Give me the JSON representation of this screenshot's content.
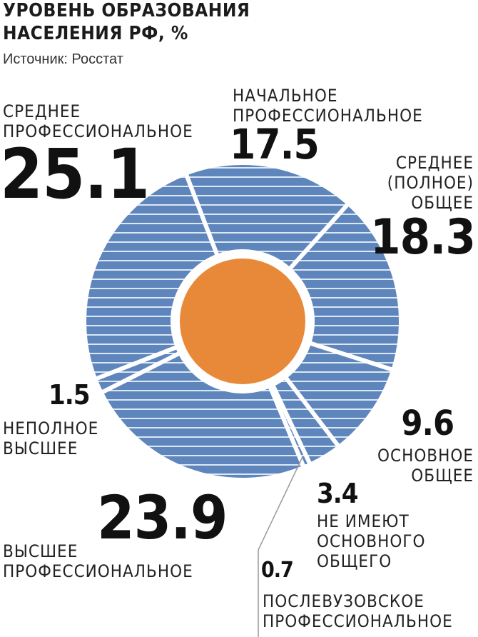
{
  "title": {
    "line1": "УРОВЕНЬ ОБРАЗОВАНИЯ",
    "line2": "НАСЕЛЕНИЯ РФ, %",
    "source": "Источник: Росстат"
  },
  "colors": {
    "ring": "#5f86bc",
    "stripe": "#dbe7f4",
    "center": "#e8893a",
    "separator": "#ffffff"
  },
  "chart_data": {
    "type": "pie",
    "title": "УРОВЕНЬ ОБРАЗОВАНИЯ НАСЕЛЕНИЯ РФ, %",
    "unit": "%",
    "slices": [
      {
        "value": 17.5,
        "value_label": "17.5",
        "label_lines": [
          "НАЧАЛЬНОЕ",
          "ПРОФЕССИОНАЛЬНОЕ"
        ]
      },
      {
        "value": 18.3,
        "value_label": "18.3",
        "label_lines": [
          "СРЕДНЕЕ",
          "(ПОЛНОЕ)",
          "ОБЩЕЕ"
        ]
      },
      {
        "value": 9.6,
        "value_label": "9.6",
        "label_lines": [
          "ОСНОВНОЕ",
          "ОБЩЕЕ"
        ]
      },
      {
        "value": 3.4,
        "value_label": "3.4",
        "label_lines": [
          "НЕ ИМЕЮТ",
          "ОСНОВНОГО",
          "ОБЩЕГО"
        ]
      },
      {
        "value": 0.7,
        "value_label": "0.7",
        "label_lines": [
          "ПОСЛЕВУЗОВСКОЕ",
          "ПРОФЕССИОНАЛЬНОЕ"
        ]
      },
      {
        "value": 23.9,
        "value_label": "23.9",
        "label_lines": [
          "ВЫСШЕЕ",
          "ПРОФЕССИОНАЛЬНОЕ"
        ]
      },
      {
        "value": 1.5,
        "value_label": "1.5",
        "label_lines": [
          "НЕПОЛНОЕ",
          "ВЫСШЕЕ"
        ]
      },
      {
        "value": 25.1,
        "value_label": "25.1",
        "label_lines": [
          "СРЕДНЕЕ",
          "ПРОФЕССИОНАЛЬНОЕ"
        ]
      }
    ]
  }
}
